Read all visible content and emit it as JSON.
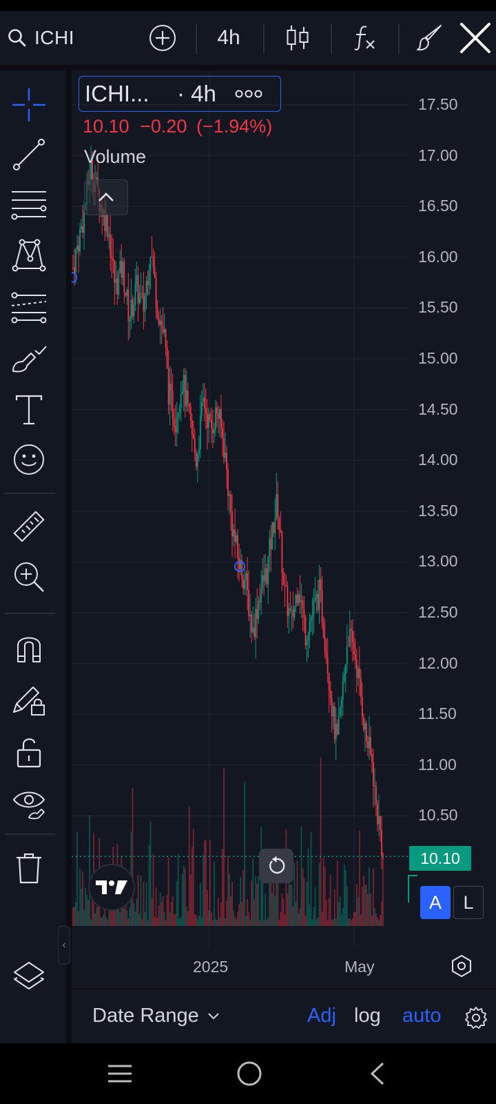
{
  "header": {
    "symbol": "ICHI",
    "interval": "4h",
    "icons": [
      "search-icon",
      "add-symbol-icon",
      "candles-icon",
      "indicators-icon",
      "brush-icon",
      "close-icon"
    ]
  },
  "legend": {
    "symbol": "ICHI...",
    "interval": "· 4h",
    "last_price": "10.10",
    "change": "−0.20",
    "change_percent": "(−1.94%)",
    "volume_label": "Volume"
  },
  "price_axis": {
    "labels": [
      "17.50",
      "17.00",
      "16.50",
      "16.00",
      "15.50",
      "15.00",
      "14.50",
      "14.00",
      "13.50",
      "13.00",
      "12.50",
      "12.00",
      "11.50",
      "11.00",
      "10.50"
    ],
    "current_price_tag": "10.10",
    "auto_button": "A",
    "log_button": "L"
  },
  "time_axis": {
    "labels": [
      "2025",
      "May"
    ]
  },
  "bottom_bar": {
    "date_range": "Date Range",
    "adj": "Adj",
    "log": "log",
    "auto": "auto"
  },
  "colors": {
    "background": "#131722",
    "up": "#089981",
    "down": "#f23645",
    "accent": "#2962ff",
    "text": "#d1d4dc"
  },
  "chart_data": {
    "type": "candlestick",
    "interval": "4h",
    "ylim": [
      10.1,
      17.6
    ],
    "last": 10.1,
    "price_points": [
      [
        0,
        15.9
      ],
      [
        3,
        16.4
      ],
      [
        5,
        16.9
      ],
      [
        8,
        16.5
      ],
      [
        10,
        16.3
      ],
      [
        12,
        15.7
      ],
      [
        14,
        15.9
      ],
      [
        16,
        15.4
      ],
      [
        18,
        15.7
      ],
      [
        20,
        15.5
      ],
      [
        22,
        16.1
      ],
      [
        24,
        15.5
      ],
      [
        26,
        15.2
      ],
      [
        27,
        14.7
      ],
      [
        29,
        14.4
      ],
      [
        31,
        14.8
      ],
      [
        33,
        14.4
      ],
      [
        35,
        14.0
      ],
      [
        37,
        14.6
      ],
      [
        39,
        14.3
      ],
      [
        41,
        14.5
      ],
      [
        43,
        14.1
      ],
      [
        45,
        13.4
      ],
      [
        47,
        13.0
      ],
      [
        49,
        12.8
      ],
      [
        51,
        12.3
      ],
      [
        53,
        12.7
      ],
      [
        55,
        12.9
      ],
      [
        57,
        13.4
      ],
      [
        58,
        13.6
      ],
      [
        60,
        12.7
      ],
      [
        62,
        12.4
      ],
      [
        64,
        12.8
      ],
      [
        66,
        12.3
      ],
      [
        68,
        12.5
      ],
      [
        70,
        12.7
      ],
      [
        72,
        12.1
      ],
      [
        74,
        11.4
      ],
      [
        75,
        11.2
      ],
      [
        77,
        11.9
      ],
      [
        78,
        12.3
      ],
      [
        80,
        12.1
      ],
      [
        82,
        11.6
      ],
      [
        83,
        11.3
      ],
      [
        85,
        11.0
      ],
      [
        86,
        10.6
      ],
      [
        87,
        10.4
      ],
      [
        88,
        10.1
      ]
    ]
  }
}
